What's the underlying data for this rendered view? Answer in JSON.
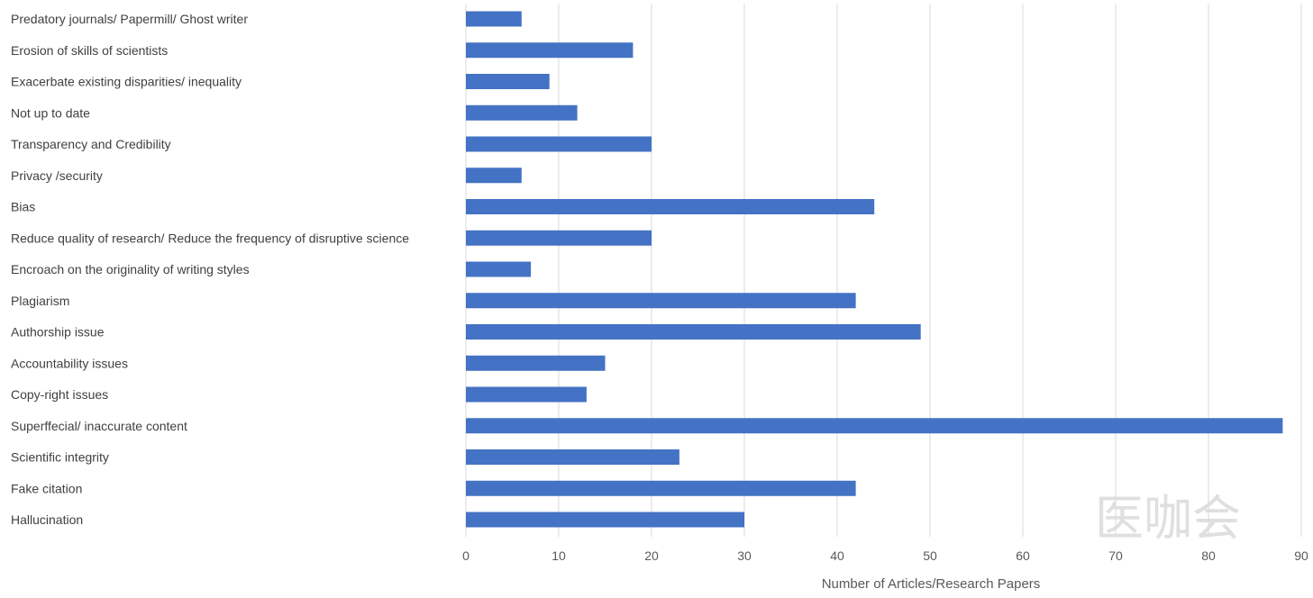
{
  "chart_data": {
    "type": "bar",
    "orientation": "horizontal",
    "categories": [
      "Predatory journals/ Papermill/ Ghost writer",
      "Erosion of skills of scientists",
      "Exacerbate existing  disparities/ inequality",
      "Not up to date",
      "Transparency and Credibility",
      "Privacy /security",
      "Bias",
      "Reduce quality of research/ Reduce the frequency of disruptive science",
      "Encroach on the originality of writing styles",
      "Plagiarism",
      "Authorship issue",
      "Accountability issues",
      "Copy-right issues",
      "Superffecial/ inaccurate content",
      "Scientific integrity",
      "Fake citation",
      "Hallucination"
    ],
    "values": [
      6,
      18,
      9,
      12,
      20,
      6,
      44,
      20,
      7,
      42,
      49,
      15,
      13,
      88,
      23,
      42,
      30
    ],
    "xlabel": "Number of Articles/Research Papers",
    "ylabel": "",
    "xlim": [
      0,
      90
    ],
    "xticks": [
      0,
      10,
      20,
      30,
      40,
      50,
      60,
      70,
      80,
      90
    ],
    "grid": "vertical",
    "bar_color": "#4472c4"
  },
  "watermark": {
    "text": "医咖会"
  }
}
